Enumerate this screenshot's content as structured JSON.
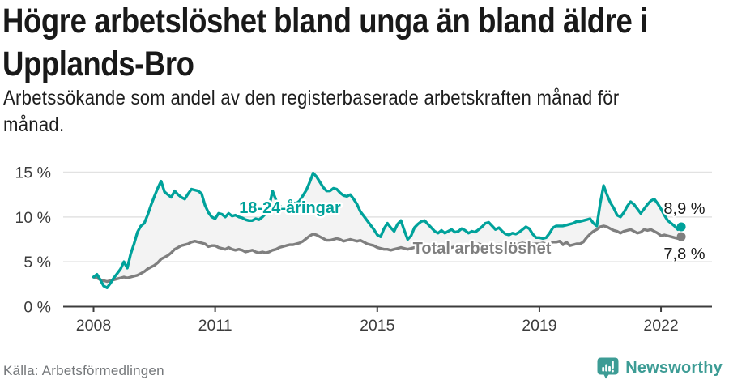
{
  "header": {
    "title_lines": [
      "Högre arbetslöshet bland unga än bland äldre i",
      "Upplands-Bro"
    ],
    "subtitle_lines": [
      "Arbetssökande som andel av den registerbaserade arbetskraften månad för",
      "månad."
    ]
  },
  "footer": {
    "source": "Källa: Arbetsförmedlingen",
    "brand_name": "Newsworthy"
  },
  "colors": {
    "youth": "#00a29b",
    "total": "#7f7f7f",
    "axis": "#3c3c3c",
    "gridline": "#e2e2e2",
    "fill_between": "#f3f3f3",
    "end_label": "#1a1a1a",
    "brand_teal": "#3d9c95",
    "source_text": "#75787b"
  },
  "chart_data": {
    "type": "line",
    "title": "Högre arbetslöshet bland unga än bland äldre i Upplands-Bro",
    "subtitle": "Arbetssökande som andel av den registerbaserade arbetskraften månad för månad.",
    "unit": "%",
    "frequency": "monthly",
    "x_start": "2008-01",
    "x_end": "2022-07",
    "ylim": [
      0,
      15
    ],
    "grid": "horizontal",
    "legend_position": "inline-labels",
    "yticks": [
      {
        "value": 0,
        "label": "0 %"
      },
      {
        "value": 5,
        "label": "5 %"
      },
      {
        "value": 10,
        "label": "10 %"
      },
      {
        "value": 15,
        "label": "15 %"
      }
    ],
    "xticks": [
      {
        "year": 2008,
        "label": "2008"
      },
      {
        "year": 2011,
        "label": "2011"
      },
      {
        "year": 2015,
        "label": "2015"
      },
      {
        "year": 2019,
        "label": "2019"
      },
      {
        "year": 2022,
        "label": "2022"
      }
    ],
    "series": [
      {
        "name": "18-24-åringar",
        "color": "#00a29b",
        "end_label": "8,9 %",
        "last_value": 8.9,
        "values": [
          3.3,
          3.6,
          3.0,
          2.3,
          2.1,
          2.6,
          3.2,
          3.7,
          4.2,
          5.0,
          4.3,
          5.9,
          7.0,
          8.3,
          9.0,
          9.3,
          10.2,
          11.3,
          12.3,
          13.2,
          14.0,
          12.8,
          12.5,
          12.2,
          12.9,
          12.5,
          12.2,
          12.0,
          12.6,
          13.1,
          13.0,
          12.9,
          12.6,
          11.3,
          10.5,
          10.0,
          9.8,
          10.4,
          10.3,
          10.0,
          10.4,
          10.1,
          10.2,
          10.0,
          9.9,
          9.7,
          9.6,
          9.6,
          9.8,
          9.7,
          10.0,
          10.4,
          11.2,
          12.9,
          11.9,
          11.3,
          10.9,
          11.0,
          11.3,
          11.6,
          11.5,
          11.8,
          12.4,
          13.0,
          13.9,
          14.9,
          14.5,
          13.9,
          13.3,
          12.9,
          12.9,
          13.2,
          13.1,
          12.7,
          12.4,
          12.3,
          12.5,
          12.0,
          11.4,
          10.6,
          10.1,
          9.6,
          9.1,
          8.6,
          8.0,
          7.8,
          8.7,
          9.3,
          8.8,
          8.4,
          9.2,
          9.6,
          8.5,
          7.5,
          7.9,
          8.8,
          9.2,
          9.5,
          9.6,
          9.2,
          8.8,
          8.4,
          8.2,
          8.5,
          8.2,
          8.4,
          8.6,
          8.3,
          8.4,
          8.7,
          8.5,
          8.2,
          8.4,
          8.3,
          8.6,
          8.9,
          9.3,
          9.4,
          9.0,
          8.6,
          8.8,
          8.4,
          8.1,
          8.0,
          8.2,
          8.1,
          8.3,
          8.6,
          8.9,
          8.7,
          8.1,
          7.7,
          7.7,
          7.6,
          7.7,
          8.2,
          8.8,
          9.0,
          9.0,
          9.0,
          9.1,
          9.2,
          9.3,
          9.5,
          9.5,
          9.6,
          9.7,
          9.8,
          9.3,
          9.0,
          11.5,
          13.5,
          12.5,
          11.6,
          11.0,
          10.2,
          10.0,
          10.5,
          11.2,
          11.7,
          11.4,
          10.9,
          10.4,
          10.9,
          11.4,
          11.8,
          12.0,
          11.5,
          10.9,
          10.2,
          9.6,
          9.3,
          9.0,
          8.6,
          8.9
        ]
      },
      {
        "name": "Total arbetslöshet",
        "color": "#7f7f7f",
        "end_label": "7,8 %",
        "last_value": 7.8,
        "values": [
          3.3,
          3.2,
          3.0,
          2.9,
          2.8,
          2.9,
          3.0,
          3.1,
          3.2,
          3.3,
          3.2,
          3.3,
          3.4,
          3.5,
          3.7,
          3.9,
          4.2,
          4.4,
          4.6,
          4.9,
          5.3,
          5.5,
          5.7,
          6.0,
          6.4,
          6.6,
          6.8,
          6.9,
          7.0,
          7.2,
          7.3,
          7.2,
          7.1,
          7.0,
          6.7,
          6.8,
          6.8,
          6.6,
          6.5,
          6.4,
          6.6,
          6.4,
          6.3,
          6.4,
          6.3,
          6.1,
          6.2,
          6.3,
          6.1,
          6.0,
          6.1,
          6.0,
          6.1,
          6.3,
          6.4,
          6.6,
          6.7,
          6.8,
          6.9,
          6.9,
          7.0,
          7.1,
          7.3,
          7.6,
          7.9,
          8.1,
          8.0,
          7.8,
          7.6,
          7.4,
          7.4,
          7.5,
          7.6,
          7.5,
          7.3,
          7.4,
          7.5,
          7.4,
          7.3,
          7.4,
          7.2,
          7.0,
          6.9,
          6.8,
          6.6,
          6.5,
          6.4,
          6.4,
          6.3,
          6.4,
          6.5,
          6.6,
          6.5,
          6.4,
          6.5,
          6.6,
          6.6,
          6.7,
          6.6,
          6.5,
          6.6,
          6.7,
          6.6,
          6.5,
          6.6,
          6.7,
          6.6,
          6.7,
          6.8,
          6.7,
          6.8,
          6.7,
          6.8,
          6.9,
          7.0,
          6.9,
          6.8,
          6.9,
          6.8,
          6.9,
          7.0,
          6.9,
          6.8,
          6.9,
          7.0,
          6.9,
          7.0,
          7.1,
          7.0,
          6.9,
          7.0,
          7.0,
          7.0,
          7.1,
          7.0,
          7.1,
          7.2,
          7.2,
          7.3,
          6.9,
          7.2,
          6.8,
          6.9,
          7.0,
          7.0,
          7.2,
          7.7,
          8.1,
          8.4,
          8.6,
          8.9,
          9.0,
          8.9,
          8.7,
          8.5,
          8.4,
          8.2,
          8.4,
          8.5,
          8.6,
          8.4,
          8.2,
          8.3,
          8.6,
          8.5,
          8.6,
          8.4,
          8.2,
          7.9,
          8.0,
          7.9,
          7.8,
          7.7,
          7.6,
          7.8
        ]
      }
    ]
  }
}
